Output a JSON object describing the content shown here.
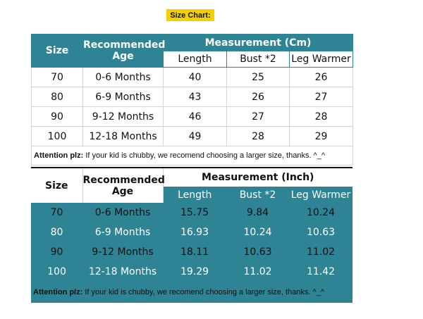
{
  "title": "Size Chart:",
  "colors": {
    "teal": "#2e8394",
    "title_bg": "#f5d000"
  },
  "note": {
    "label": "Attention plz:",
    "text": " If your kid is chubby, we recomend choosing a larger size, thanks. ^_^"
  },
  "cm_table": {
    "headers": {
      "size": "Size",
      "age": "Recommended Age",
      "measurement": "Measurement (Cm)",
      "length": "Length",
      "bust": "Bust *2",
      "leg": "Leg Warmer"
    },
    "rows": [
      {
        "size": "70",
        "age": "0-6 Months",
        "length": "40",
        "bust": "25",
        "leg": "26"
      },
      {
        "size": "80",
        "age": "6-9 Months",
        "length": "43",
        "bust": "26",
        "leg": "27"
      },
      {
        "size": "90",
        "age": "9-12 Months",
        "length": "46",
        "bust": "27",
        "leg": "28"
      },
      {
        "size": "100",
        "age": "12-18 Months",
        "length": "49",
        "bust": "28",
        "leg": "29"
      }
    ]
  },
  "inch_table": {
    "headers": {
      "size": "Size",
      "age": "Recommended Age",
      "measurement": "Measurement (Inch)",
      "length": "Length",
      "bust": "Bust *2",
      "leg": "Leg Warmer"
    },
    "rows": [
      {
        "size": "70",
        "age": "0-6 Months",
        "length": "15.75",
        "bust": "9.84",
        "leg": "10.24"
      },
      {
        "size": "80",
        "age": "6-9 Months",
        "length": "16.93",
        "bust": "10.24",
        "leg": "10.63"
      },
      {
        "size": "90",
        "age": "9-12 Months",
        "length": "18.11",
        "bust": "10.63",
        "leg": "11.02"
      },
      {
        "size": "100",
        "age": "12-18 Months",
        "length": "19.29",
        "bust": "11.02",
        "leg": "11.42"
      }
    ]
  }
}
